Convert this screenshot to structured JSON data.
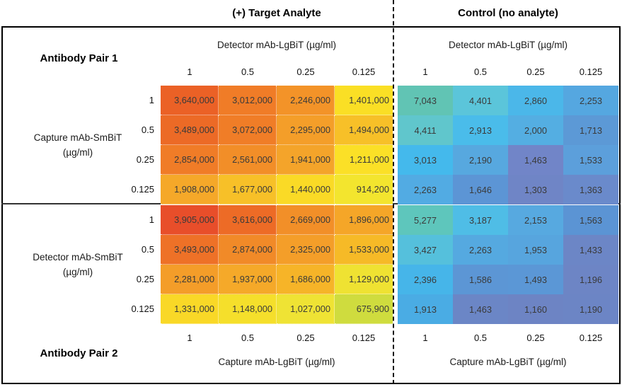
{
  "titles": {
    "target": "(+) Target Analyte",
    "control": "Control (no analyte)"
  },
  "axes": {
    "pair1_label": "Antibody Pair 1",
    "pair2_label": "Antibody Pair 2",
    "top_axis": "Detector mAb-LgBiT (µg/ml)",
    "bottom_axis": "Capture mAb-LgBiT (µg/ml)",
    "pair1_left_line1": "Capture mAb-SmBiT",
    "pair1_left_line2": "(µg/ml)",
    "pair2_left_line1": "Detector mAb-SmBiT",
    "pair2_left_line2": "(µg/ml)",
    "tick_labels": [
      "1",
      "0.5",
      "0.25",
      "0.125"
    ]
  },
  "chart_data": {
    "type": "heatmap",
    "condition_columns": [
      "(+) Target Analyte",
      "Control (no analyte)"
    ],
    "col_ticks": [
      1,
      0.5,
      0.25,
      0.125
    ],
    "row_ticks": [
      1,
      0.5,
      0.25,
      0.125
    ],
    "sections": [
      {
        "name": "Antibody Pair 1",
        "row_axis": "Capture mAb-SmBiT (µg/ml)",
        "col_axis": "Detector mAb-LgBiT (µg/ml)",
        "target": {
          "values": [
            [
              3640000,
              3012000,
              2246000,
              1401000
            ],
            [
              3489000,
              3072000,
              2295000,
              1494000
            ],
            [
              2854000,
              2561000,
              1941000,
              1211000
            ],
            [
              1908000,
              1677000,
              1440000,
              914200
            ]
          ],
          "colors": [
            [
              "#EB6126",
              "#F07C27",
              "#F39328",
              "#FADF25"
            ],
            [
              "#EC6A26",
              "#F07D27",
              "#F49E29",
              "#F7C028"
            ],
            [
              "#F07C27",
              "#F28E28",
              "#F4A42A",
              "#FBE027"
            ],
            [
              "#F5A829",
              "#F7C028",
              "#FADA26",
              "#F3E52E"
            ]
          ]
        },
        "control": {
          "values": [
            [
              7043,
              4401,
              2860,
              2253
            ],
            [
              4411,
              2913,
              2000,
              1713
            ],
            [
              3013,
              2190,
              1463,
              1533
            ],
            [
              2263,
              1646,
              1303,
              1363
            ]
          ],
          "colors": [
            [
              "#61C4B4",
              "#5BC5DA",
              "#4BB7E9",
              "#55A7E0"
            ],
            [
              "#60C6CC",
              "#4ABCEA",
              "#54AEE2",
              "#5C99D6"
            ],
            [
              "#44B9EC",
              "#57A8DF",
              "#7185C8",
              "#5C9FDB"
            ],
            [
              "#52ABE3",
              "#5C95D5",
              "#6F85C6",
              "#6A8ACB"
            ]
          ]
        }
      },
      {
        "name": "Antibody Pair 2",
        "row_axis": "Detector mAb-SmBiT (µg/ml)",
        "col_axis": "Capture mAb-LgBiT (µg/ml)",
        "target": {
          "values": [
            [
              3905000,
              3616000,
              2669000,
              1896000
            ],
            [
              3493000,
              2874000,
              2325000,
              1533000
            ],
            [
              2281000,
              1937000,
              1686000,
              1129000
            ],
            [
              1331000,
              1148000,
              1027000,
              675900
            ]
          ],
          "colors": [
            [
              "#E84E2A",
              "#ED6B26",
              "#F28F28",
              "#F5A628"
            ],
            [
              "#EE7127",
              "#F18A28",
              "#F49E29",
              "#F6BA27"
            ],
            [
              "#F49D29",
              "#F5A929",
              "#F6B428",
              "#EFE232"
            ],
            [
              "#F9D827",
              "#F5DF2B",
              "#EFE334",
              "#CFDC3E"
            ]
          ]
        },
        "control": {
          "values": [
            [
              5277,
              3187,
              2153,
              1563
            ],
            [
              3427,
              2263,
              1953,
              1433
            ],
            [
              2396,
              1586,
              1493,
              1196
            ],
            [
              1913,
              1463,
              1160,
              1190
            ]
          ],
          "colors": [
            [
              "#5EC6BC",
              "#4FBDE6",
              "#57A9E0",
              "#5B94D4"
            ],
            [
              "#55C0DC",
              "#55A9E0",
              "#57A5DE",
              "#6C86C6"
            ],
            [
              "#46B5E9",
              "#5C96D5",
              "#5B97D6",
              "#6D85C5"
            ],
            [
              "#4AACE4",
              "#6B86C6",
              "#6D84C4",
              "#6C85C5"
            ]
          ]
        }
      }
    ]
  }
}
